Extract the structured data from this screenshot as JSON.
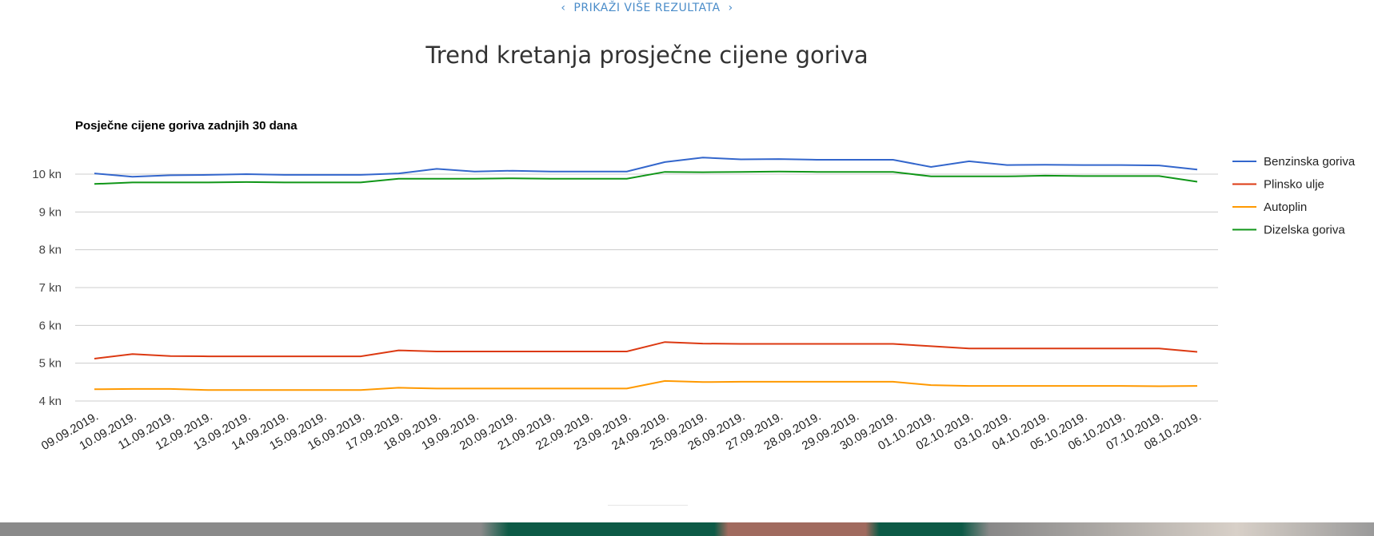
{
  "top_link": {
    "label": "PRIKAŽI VIŠE REZULTATA"
  },
  "page_title": "Trend kretanja prosječne cijene goriva",
  "colors": {
    "benzin": "#3366cc",
    "plinsko": "#dc3912",
    "autoplin": "#ff9900",
    "dizel": "#109618",
    "grid": "#cccccc"
  },
  "chart_data": {
    "type": "line",
    "title": "Posječne cijene goriva zadnjih 30 dana",
    "xlabel": "",
    "ylabel": "",
    "ylim": [
      4,
      10
    ],
    "yticks": [
      {
        "v": 4,
        "label": "4 kn"
      },
      {
        "v": 5,
        "label": "5 kn"
      },
      {
        "v": 6,
        "label": "6 kn"
      },
      {
        "v": 7,
        "label": "7 kn"
      },
      {
        "v": 8,
        "label": "8 kn"
      },
      {
        "v": 9,
        "label": "9 kn"
      },
      {
        "v": 10,
        "label": "10 kn"
      }
    ],
    "grid": true,
    "legend": "right",
    "x": [
      "09.09.2019.",
      "10.09.2019.",
      "11.09.2019.",
      "12.09.2019.",
      "13.09.2019.",
      "14.09.2019.",
      "15.09.2019.",
      "16.09.2019.",
      "17.09.2019.",
      "18.09.2019.",
      "19.09.2019.",
      "20.09.2019.",
      "21.09.2019.",
      "22.09.2019.",
      "23.09.2019.",
      "24.09.2019.",
      "25.09.2019.",
      "26.09.2019.",
      "27.09.2019.",
      "28.09.2019.",
      "29.09.2019.",
      "30.09.2019.",
      "01.10.2019.",
      "02.10.2019.",
      "03.10.2019.",
      "04.10.2019.",
      "05.10.2019.",
      "06.10.2019.",
      "07.10.2019.",
      "08.10.2019."
    ],
    "series": [
      {
        "name": "Benzinska goriva",
        "color": "#3366cc",
        "values": [
          10.02,
          9.93,
          9.97,
          9.98,
          10.0,
          9.98,
          9.98,
          9.98,
          10.02,
          10.14,
          10.07,
          10.09,
          10.07,
          10.07,
          10.07,
          10.32,
          10.44,
          10.39,
          10.4,
          10.38,
          10.38,
          10.38,
          10.19,
          10.34,
          10.24,
          10.25,
          10.24,
          10.24,
          10.23,
          10.12
        ]
      },
      {
        "name": "Plinsko ulje",
        "color": "#dc3912",
        "values": [
          5.12,
          5.24,
          5.19,
          5.18,
          5.18,
          5.18,
          5.18,
          5.18,
          5.34,
          5.31,
          5.31,
          5.31,
          5.31,
          5.31,
          5.31,
          5.56,
          5.52,
          5.51,
          5.51,
          5.51,
          5.51,
          5.51,
          5.45,
          5.39,
          5.39,
          5.39,
          5.39,
          5.39,
          5.39,
          5.3
        ]
      },
      {
        "name": "Autoplin",
        "color": "#ff9900",
        "values": [
          4.31,
          4.32,
          4.32,
          4.29,
          4.29,
          4.29,
          4.29,
          4.29,
          4.35,
          4.33,
          4.33,
          4.33,
          4.33,
          4.33,
          4.33,
          4.53,
          4.5,
          4.51,
          4.51,
          4.51,
          4.51,
          4.51,
          4.42,
          4.4,
          4.4,
          4.4,
          4.4,
          4.4,
          4.39,
          4.4
        ]
      },
      {
        "name": "Dizelska goriva",
        "color": "#109618",
        "values": [
          9.74,
          9.78,
          9.78,
          9.78,
          9.79,
          9.78,
          9.78,
          9.78,
          9.88,
          9.88,
          9.88,
          9.89,
          9.88,
          9.88,
          9.88,
          10.06,
          10.05,
          10.06,
          10.07,
          10.06,
          10.06,
          10.06,
          9.94,
          9.94,
          9.94,
          9.96,
          9.95,
          9.95,
          9.95,
          9.8
        ]
      }
    ]
  }
}
